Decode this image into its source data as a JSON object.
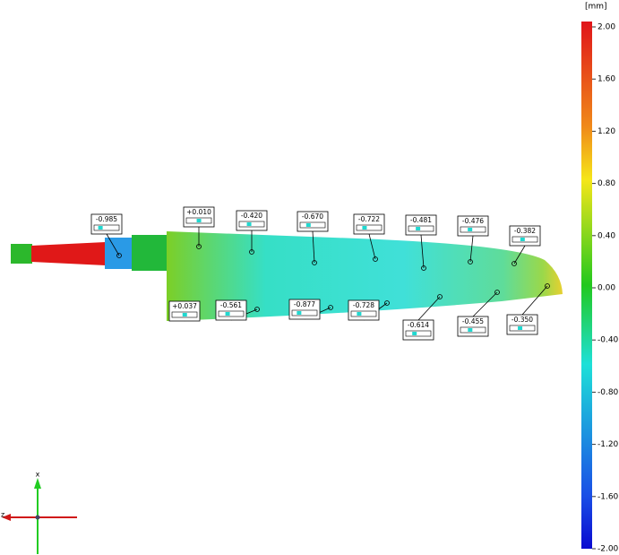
{
  "colorbar": {
    "unit": "[mm]",
    "ticks": [
      {
        "value": 2,
        "label": "2.00"
      },
      {
        "value": 1.6,
        "label": "1.60"
      },
      {
        "value": 1.2,
        "label": "1.20"
      },
      {
        "value": 0.8,
        "label": "0.80"
      },
      {
        "value": 0.4,
        "label": "0.40"
      },
      {
        "value": 0,
        "label": "0.00"
      },
      {
        "value": -0.4,
        "label": "-0.40"
      },
      {
        "value": -0.8,
        "label": "-0.80"
      },
      {
        "value": -1.2,
        "label": "-1.20"
      },
      {
        "value": -1.6,
        "label": "-1.60"
      },
      {
        "value": -2,
        "label": "-2.00"
      }
    ]
  },
  "deviations": [
    {
      "value": -0.985,
      "label": "-0.985"
    },
    {
      "value": 0.01,
      "label": "+0.010"
    },
    {
      "value": -0.42,
      "label": "-0.420"
    },
    {
      "value": -0.67,
      "label": "-0.670"
    },
    {
      "value": -0.722,
      "label": "-0.722"
    },
    {
      "value": -0.481,
      "label": "-0.481"
    },
    {
      "value": -0.476,
      "label": "-0.476"
    },
    {
      "value": -0.382,
      "label": "-0.382"
    },
    {
      "value": 0.037,
      "label": "+0.037"
    },
    {
      "value": -0.561,
      "label": "-0.561"
    },
    {
      "value": -0.877,
      "label": "-0.877"
    },
    {
      "value": -0.728,
      "label": "-0.728"
    },
    {
      "value": -0.614,
      "label": "-0.614"
    },
    {
      "value": -0.455,
      "label": "-0.455"
    },
    {
      "value": -0.35,
      "label": "-0.350"
    }
  ],
  "axes": {
    "vertical": "x",
    "horizontal": "z"
  }
}
